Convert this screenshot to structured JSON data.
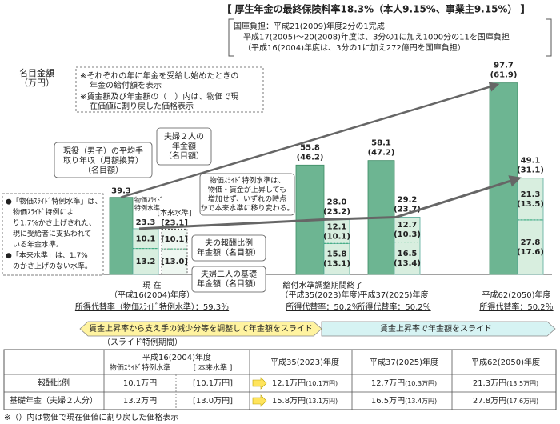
{
  "header": {
    "title": "【 厚生年金の最終保険料率18.3%（本人9.15%、事業主9.15%） 】",
    "subsidy": [
      "国庫負担：平成21(2009)年度2分の1完成",
      "平成17(2005)～20(2008)年度は、3分の1に加え1000分の11を国庫負担",
      "（平成16(2004)年度は、3分の1に加え272億円を国庫負担）"
    ]
  },
  "chart_data": {
    "type": "bar",
    "y_axis_label": [
      "名目金額",
      "（万円）"
    ],
    "notes": [
      [
        "※それぞれの年に年金を受給し始めたときの",
        "年金の給付額を表示"
      ],
      [
        "※賃金額及び年金額の（　）内は、物価で現",
        "在価値に割り戻した価格表示"
      ]
    ],
    "wage_color": "#6db592",
    "pension_color": "#d8eedf",
    "groups": [
      {
        "label": [
          "現 在",
          "（平成16(2004)年度）"
        ],
        "replacement_rate": "所得代替率（物価ｽﾗｲﾄﾞ特例水準）：59.3％",
        "wage": 39.3,
        "pension": 23.3,
        "earnings": 10.1,
        "basic": 13.2,
        "alt": {
          "label": "[本来水準]",
          "pension": 23.1,
          "pension_label": "[23.1]",
          "earnings": 10.1,
          "earnings_label": "[10.1]",
          "basic": 13.0,
          "basic_label": "[13.0]"
        }
      },
      {
        "label": [
          "給付水準調整期間終了",
          "（平成35(2023)年度）"
        ],
        "replacement_rate": "所得代替率：50.2％",
        "wage": 55.8,
        "wage_real_label": "(46.2)",
        "pension": 28.0,
        "pension_label": "28.0",
        "pension_real_label": "(23.2)",
        "earnings": 12.1,
        "earnings_real_label": "(10.1)",
        "basic": 15.8,
        "basic_real_label": "(13.1)"
      },
      {
        "label": [
          "平成37(2025)年度"
        ],
        "replacement_rate": "所得代替率：50.2％",
        "wage": 58.1,
        "wage_real_label": "(47.2)",
        "pension": 29.2,
        "pension_real_label": "(23.7)",
        "earnings": 12.7,
        "earnings_real_label": "(10.3)",
        "basic": 16.5,
        "basic_real_label": "(13.4)"
      },
      {
        "label": [
          "平成62(2050)年度"
        ],
        "replacement_rate": "所得代替率：50.2％",
        "wage": 97.7,
        "wage_real_label": "(61.9)",
        "pension": 49.1,
        "pension_real_label": "(31.1)",
        "earnings": 21.3,
        "earnings_real_label": "(13.5)",
        "basic": 27.8,
        "basic_real_label": "(17.6)"
      }
    ],
    "callouts": {
      "wage": [
        "現役（男子）の平均手",
        "取り年収（月額換算）",
        "（名目額）"
      ],
      "couple": [
        "夫婦２人の",
        "年金額",
        "（名目額）"
      ],
      "special_level": [
        "物価ｽﾗｲﾄﾞ",
        "特例水準"
      ],
      "transition": [
        "物価ｽﾗｲﾄﾞ特例水準は、",
        "物価・賃金が上昇しても",
        "増加せず、いずれの時点",
        "かで本来水準に移り変わる。"
      ],
      "earnings": [
        "夫の報酬比例",
        "年金額（名目額）"
      ],
      "basic": [
        "夫婦二人の基礎",
        "年金額（名目額）"
      ],
      "definitions": [
        "●「物価ｽﾗｲﾄﾞ特例水準」は、",
        "　物価ｽﾗｲﾄﾞ特例によ",
        "　り1.7%かさ上げされた、",
        "　現に受給者に支払われて",
        "　いる年金水準。",
        "●「本来水準」は、1.7%",
        "　のかさ上げのない水準。"
      ]
    },
    "bands": [
      {
        "text": "賃金上昇率から支え手の減少分等を調整して年金額をスライド",
        "note": "（スライド特例期間）",
        "color": "#fff3a0"
      },
      {
        "text": "賃金上昇率で年金額をスライド",
        "color": "#d6f3f3"
      }
    ]
  },
  "table": {
    "header": {
      "year0": "平成16(2004)年度",
      "sub": [
        "物価ｽﾗｲﾄﾞ特例水準",
        "[ 本来水準 ]"
      ],
      "years": [
        "平成35(2023)年度",
        "平成37(2025)年度",
        "平成62(2050)年度"
      ]
    },
    "rows": [
      {
        "label": "報酬比例",
        "cells": [
          [
            "10.1万円"
          ],
          [
            "[10.1万円]"
          ],
          [
            "12.1万円",
            "(10.1万円)"
          ],
          [
            "12.7万円",
            "(10.3万円)"
          ],
          [
            "21.3万円",
            "(13.5万円)"
          ]
        ]
      },
      {
        "label": "基礎年金（夫婦２人分）",
        "cells": [
          [
            "13.2万円"
          ],
          [
            "[13.0万円]"
          ],
          [
            "15.8万円",
            "(13.1万円)"
          ],
          [
            "16.5万円",
            "(13.4万円)"
          ],
          [
            "27.8万円",
            "(17.6万円)"
          ]
        ]
      }
    ]
  },
  "footnote": "※（）内は物価で現在価値に割り戻した価格表示"
}
